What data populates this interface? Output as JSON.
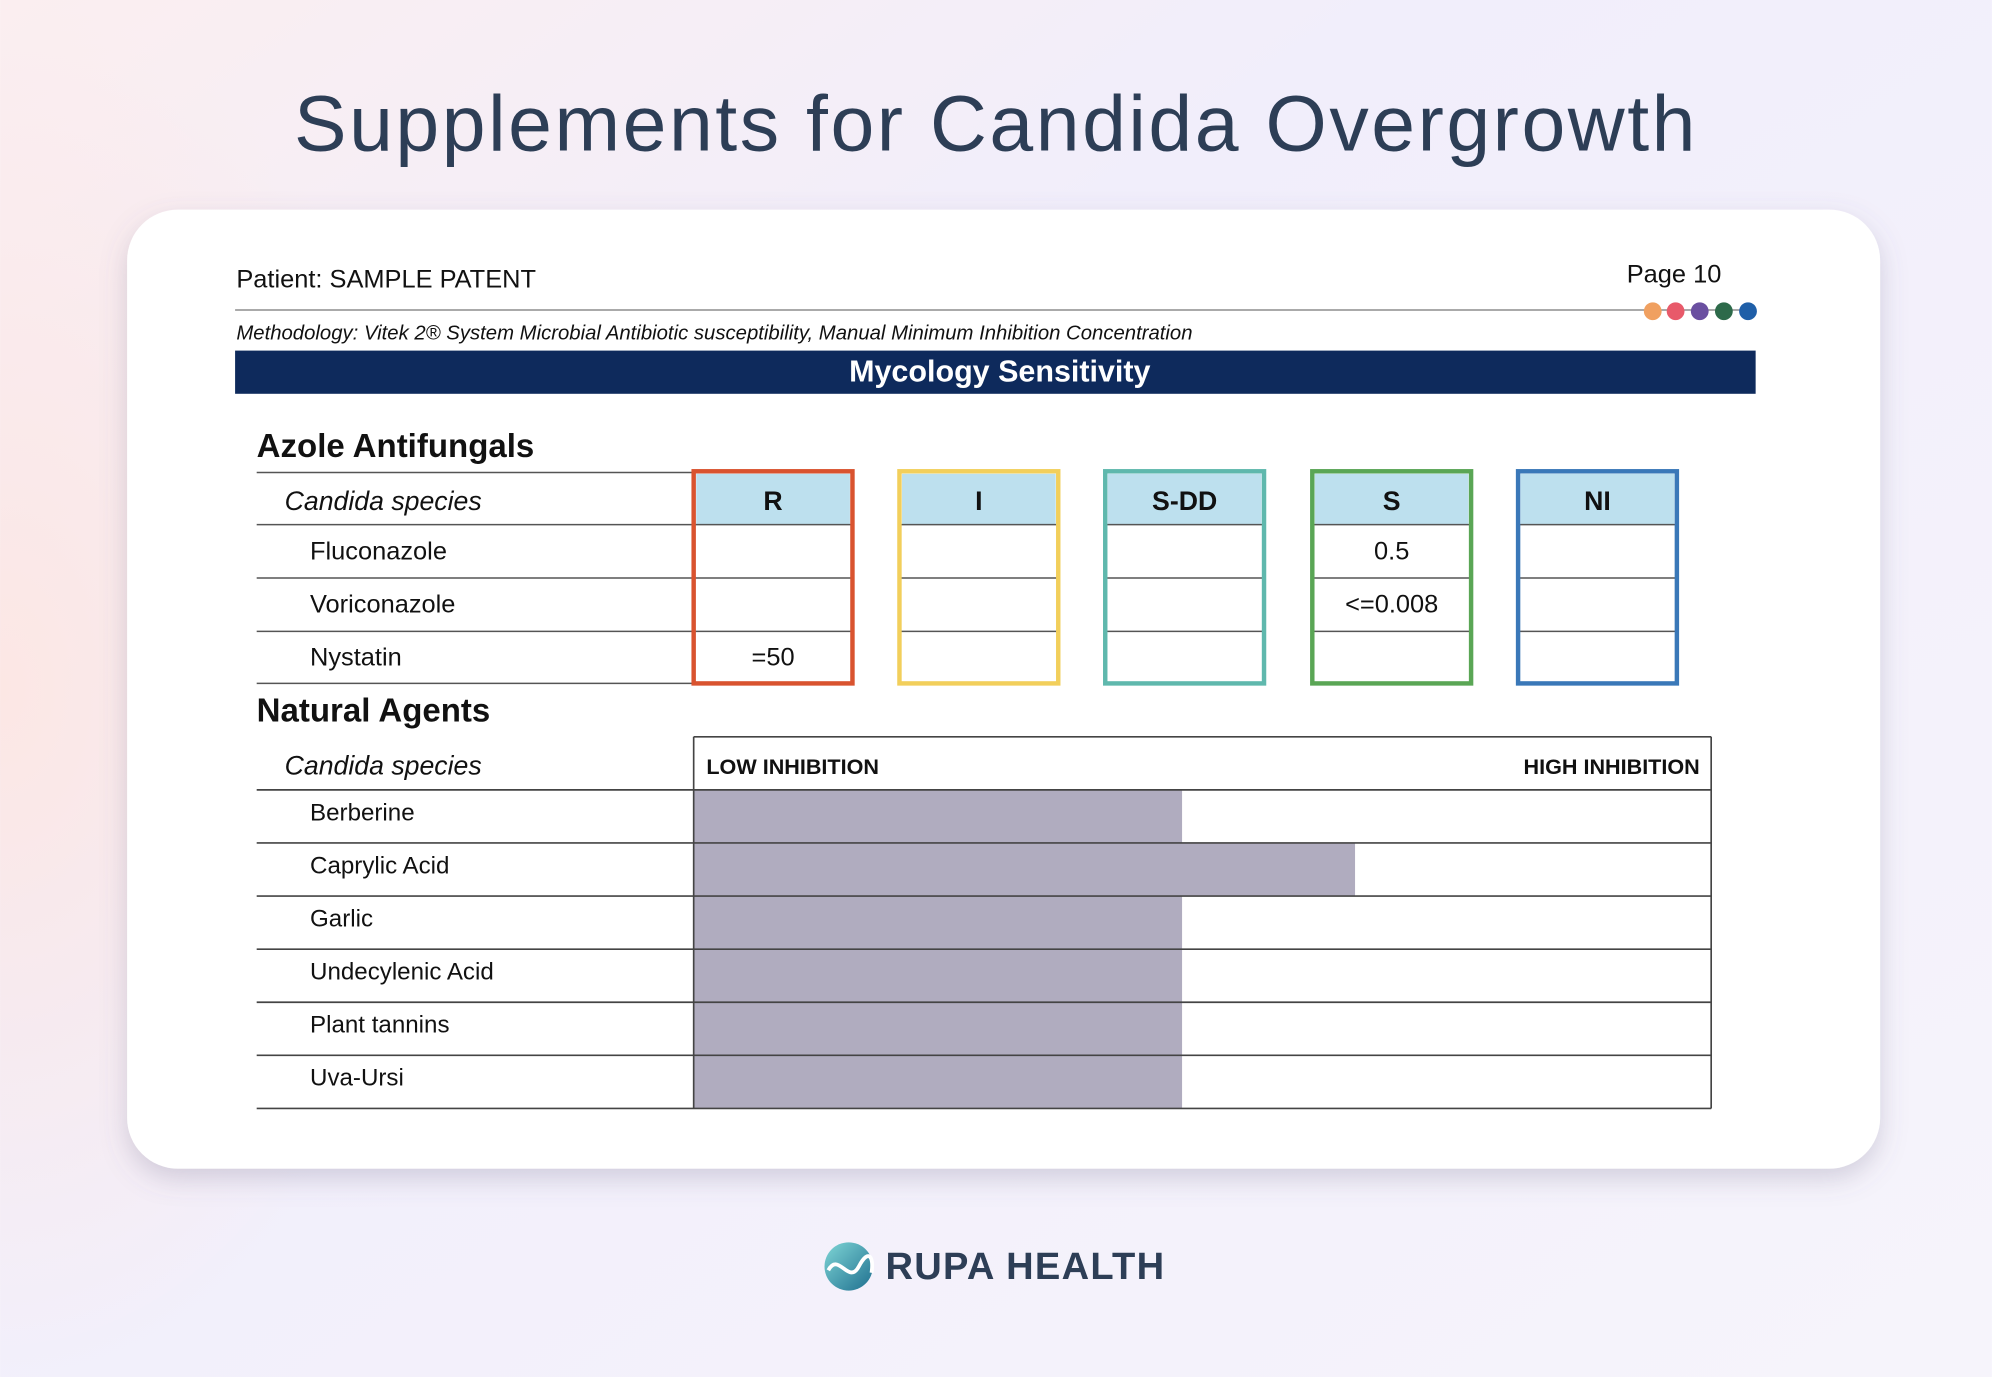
{
  "title": "Supplements for Candida Overgrowth",
  "report": {
    "patient": "Patient: SAMPLE PATENT",
    "page": "Page 10",
    "methodology": "Methodology: Vitek 2® System Microbial Antibiotic susceptibility, Manual Minimum Inhibition Concentration",
    "banner": "Mycology Sensitivity",
    "azole": {
      "heading": "Azole Antifungals",
      "row_header": "Candida species",
      "columns": [
        {
          "label": "R",
          "color": "#d9532f"
        },
        {
          "label": "I",
          "color": "#f2cf5b"
        },
        {
          "label": "S-DD",
          "color": "#5fb8ad"
        },
        {
          "label": "S",
          "color": "#5aa655"
        },
        {
          "label": "NI",
          "color": "#3a78b8"
        }
      ],
      "rows": [
        {
          "name": "Fluconazole",
          "cells": [
            null,
            null,
            null,
            "0.5",
            null
          ]
        },
        {
          "name": "Voriconazole",
          "cells": [
            null,
            null,
            null,
            "<=0.008",
            null
          ]
        },
        {
          "name": "Nystatin",
          "cells": [
            "=50",
            null,
            null,
            null,
            null
          ]
        }
      ]
    },
    "natural": {
      "heading": "Natural Agents",
      "row_header": "Candida species",
      "low_label": "LOW INHIBITION",
      "high_label": "HIGH INHIBITION",
      "xlim": [
        0,
        100
      ],
      "bar_color": "#b0acbf",
      "rows": [
        {
          "name": "Berberine",
          "value": 48
        },
        {
          "name": "Caprylic Acid",
          "value": 65
        },
        {
          "name": "Garlic",
          "value": 48
        },
        {
          "name": "Undecylenic Acid",
          "value": 48
        },
        {
          "name": "Plant tannins",
          "value": 48
        },
        {
          "name": "Uva-Ursi",
          "value": 48
        }
      ]
    }
  },
  "brand": "RUPA HEALTH"
}
